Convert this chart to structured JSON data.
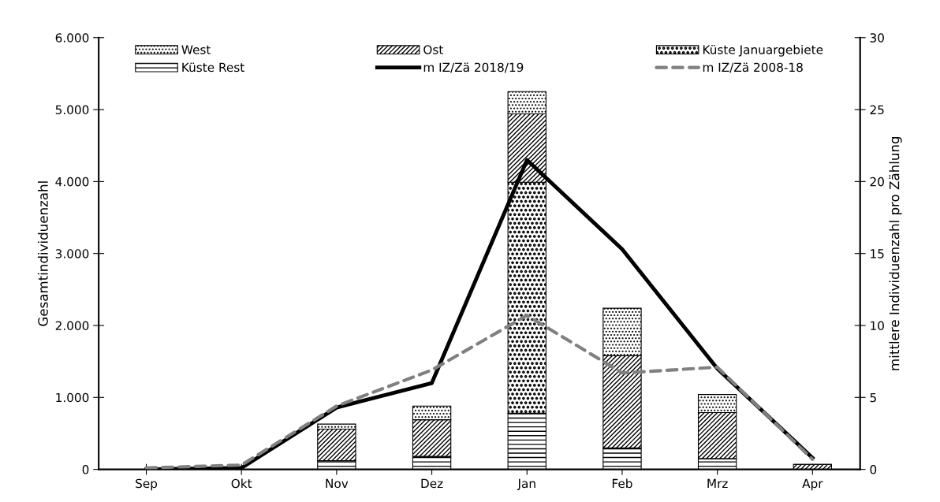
{
  "chart_data": {
    "type": "bar",
    "stacked": true,
    "categories": [
      "Sep",
      "Okt",
      "Nov",
      "Dez",
      "Jan",
      "Feb",
      "Mrz",
      "Apr"
    ],
    "ylabel": "Gesamtindividuenzahl",
    "y2label": "mittlere Individuenzahl pro Zählung",
    "ylim": [
      0,
      6000
    ],
    "yticks": [
      {
        "value": 0,
        "label": "0"
      },
      {
        "value": 1000,
        "label": "1.000"
      },
      {
        "value": 2000,
        "label": "2.000"
      },
      {
        "value": 3000,
        "label": "3.000"
      },
      {
        "value": 4000,
        "label": "4.000"
      },
      {
        "value": 5000,
        "label": "5.000"
      },
      {
        "value": 6000,
        "label": "6.000"
      }
    ],
    "y2lim": [
      0,
      30
    ],
    "y2ticks": [
      0,
      5,
      10,
      15,
      20,
      25,
      30
    ],
    "grid": false,
    "legend": "top",
    "series": [
      {
        "name": "Küste Rest",
        "color": "#000000",
        "values": [
          0,
          0,
          120,
          180,
          780,
          300,
          150,
          0
        ]
      },
      {
        "name": "Küste Januargebiete",
        "color": "#000000",
        "values": [
          0,
          0,
          0,
          0,
          3210,
          0,
          0,
          0
        ]
      },
      {
        "name": "Ost",
        "color": "#000000",
        "values": [
          0,
          0,
          440,
          510,
          950,
          1280,
          640,
          70
        ]
      },
      {
        "name": "West",
        "color": "#000000",
        "values": [
          0,
          0,
          70,
          190,
          310,
          660,
          250,
          0
        ]
      },
      {
        "name": "m IZ/Zä 2018/19",
        "type": "line",
        "axis": "y2",
        "color": "#000000",
        "line_style": "solid",
        "values": [
          0,
          0.1,
          4.3,
          6.0,
          21.5,
          15.3,
          7.0,
          0.8
        ]
      },
      {
        "name": "m IZ/Zä 2008-18",
        "type": "line",
        "axis": "y2",
        "color": "#808080",
        "line_style": "dashed",
        "values": [
          0.1,
          0.3,
          4.4,
          6.9,
          10.7,
          6.7,
          7.1,
          0.7
        ]
      }
    ]
  }
}
